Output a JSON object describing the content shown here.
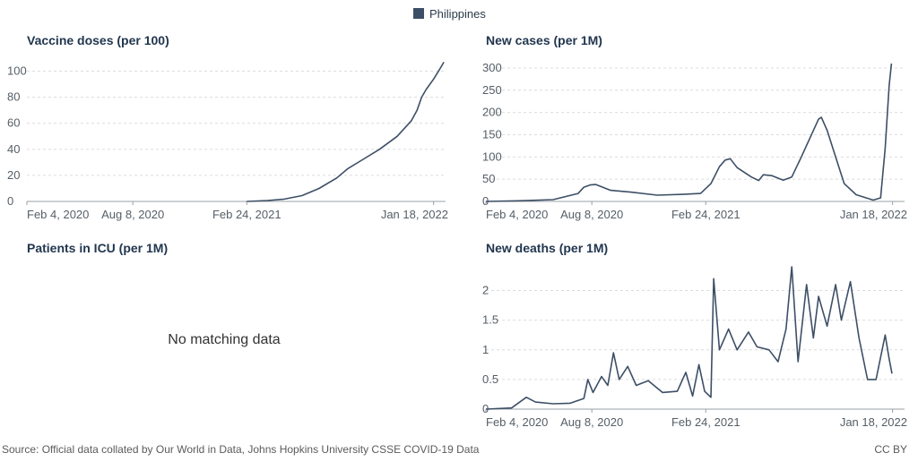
{
  "legend": {
    "label": "Philippines",
    "color": "#3d4f66"
  },
  "chart_data": [
    {
      "type": "line",
      "title": "Vaccine doses (per 100)",
      "series": [
        {
          "name": "Philippines",
          "color": "#3d4f66"
        }
      ],
      "ylim": [
        0,
        110
      ],
      "yticks": [
        "0",
        "20",
        "40",
        "60",
        "80",
        "100"
      ],
      "xticks": [
        "Feb 4, 2020",
        "Aug 8, 2020",
        "Feb 24, 2021",
        "Jan 18, 2022"
      ],
      "grid": true,
      "points": [
        [
          "2021-02-24",
          0
        ],
        [
          "2021-04-01",
          0.7
        ],
        [
          "2021-05-01",
          1.8
        ],
        [
          "2021-06-01",
          4.5
        ],
        [
          "2021-07-01",
          10
        ],
        [
          "2021-08-01",
          18
        ],
        [
          "2021-08-20",
          25
        ],
        [
          "2021-09-15",
          32
        ],
        [
          "2021-10-15",
          40
        ],
        [
          "2021-11-15",
          50
        ],
        [
          "2021-12-10",
          62
        ],
        [
          "2021-12-20",
          70
        ],
        [
          "2021-12-28",
          80
        ],
        [
          "2022-01-05",
          86
        ],
        [
          "2022-01-18",
          94
        ],
        [
          "2022-01-28",
          101
        ],
        [
          "2022-02-05",
          107
        ]
      ]
    },
    {
      "type": "line",
      "title": "New cases (per 1M)",
      "series": [
        {
          "name": "Philippines",
          "color": "#3d4f66"
        }
      ],
      "ylim": [
        0,
        320
      ],
      "yticks": [
        "0",
        "50",
        "100",
        "150",
        "200",
        "250",
        "300"
      ],
      "xticks": [
        "Feb 4, 2020",
        "Aug 8, 2020",
        "Feb 24, 2021",
        "Jan 18, 2022"
      ],
      "grid": true,
      "points": [
        [
          "2020-02-04",
          0
        ],
        [
          "2020-04-01",
          1.5
        ],
        [
          "2020-06-01",
          4
        ],
        [
          "2020-07-15",
          18
        ],
        [
          "2020-07-25",
          32
        ],
        [
          "2020-08-05",
          37
        ],
        [
          "2020-08-15",
          38
        ],
        [
          "2020-08-25",
          33
        ],
        [
          "2020-09-10",
          25
        ],
        [
          "2020-10-15",
          21
        ],
        [
          "2020-12-01",
          14
        ],
        [
          "2021-01-15",
          16
        ],
        [
          "2021-02-15",
          18
        ],
        [
          "2021-03-05",
          40
        ],
        [
          "2021-03-20",
          78
        ],
        [
          "2021-03-30",
          93
        ],
        [
          "2021-04-08",
          96
        ],
        [
          "2021-04-20",
          76
        ],
        [
          "2021-05-15",
          55
        ],
        [
          "2021-05-28",
          47
        ],
        [
          "2021-06-05",
          60
        ],
        [
          "2021-06-20",
          58
        ],
        [
          "2021-07-10",
          48
        ],
        [
          "2021-07-25",
          55
        ],
        [
          "2021-08-10",
          98
        ],
        [
          "2021-08-25",
          140
        ],
        [
          "2021-09-10",
          185
        ],
        [
          "2021-09-15",
          189
        ],
        [
          "2021-09-25",
          160
        ],
        [
          "2021-10-10",
          100
        ],
        [
          "2021-10-25",
          40
        ],
        [
          "2021-11-15",
          15
        ],
        [
          "2021-12-15",
          3
        ],
        [
          "2021-12-28",
          8
        ],
        [
          "2022-01-05",
          120
        ],
        [
          "2022-01-12",
          260
        ],
        [
          "2022-01-16",
          310
        ]
      ]
    },
    {
      "type": "line",
      "title": "Patients in ICU (per 1M)",
      "series": [],
      "empty_message": "No matching data"
    },
    {
      "type": "line",
      "title": "New deaths (per 1M)",
      "series": [
        {
          "name": "Philippines",
          "color": "#3d4f66"
        }
      ],
      "ylim": [
        0,
        2.4
      ],
      "yticks": [
        "0",
        "0.5",
        "1",
        "1.5",
        "2"
      ],
      "xticks": [
        "Feb 4, 2020",
        "Aug 8, 2020",
        "Feb 24, 2021",
        "Jan 18, 2022"
      ],
      "grid": true,
      "points": [
        [
          "2020-02-04",
          0
        ],
        [
          "2020-03-20",
          0.02
        ],
        [
          "2020-04-15",
          0.2
        ],
        [
          "2020-05-01",
          0.12
        ],
        [
          "2020-06-01",
          0.09
        ],
        [
          "2020-07-01",
          0.1
        ],
        [
          "2020-07-25",
          0.18
        ],
        [
          "2020-08-01",
          0.5
        ],
        [
          "2020-08-10",
          0.28
        ],
        [
          "2020-08-25",
          0.55
        ],
        [
          "2020-09-05",
          0.4
        ],
        [
          "2020-09-15",
          0.95
        ],
        [
          "2020-09-25",
          0.5
        ],
        [
          "2020-10-10",
          0.72
        ],
        [
          "2020-10-25",
          0.4
        ],
        [
          "2020-11-15",
          0.48
        ],
        [
          "2020-12-10",
          0.28
        ],
        [
          "2021-01-05",
          0.3
        ],
        [
          "2021-01-20",
          0.62
        ],
        [
          "2021-02-01",
          0.22
        ],
        [
          "2021-02-12",
          0.75
        ],
        [
          "2021-02-22",
          0.3
        ],
        [
          "2021-03-05",
          0.2
        ],
        [
          "2021-03-10",
          2.2
        ],
        [
          "2021-03-20",
          1.0
        ],
        [
          "2021-04-05",
          1.35
        ],
        [
          "2021-04-20",
          1.0
        ],
        [
          "2021-05-10",
          1.3
        ],
        [
          "2021-05-25",
          1.05
        ],
        [
          "2021-06-15",
          1.0
        ],
        [
          "2021-07-01",
          0.8
        ],
        [
          "2021-07-15",
          1.35
        ],
        [
          "2021-07-25",
          2.4
        ],
        [
          "2021-08-05",
          0.8
        ],
        [
          "2021-08-20",
          2.1
        ],
        [
          "2021-09-01",
          1.2
        ],
        [
          "2021-09-10",
          1.9
        ],
        [
          "2021-09-25",
          1.4
        ],
        [
          "2021-10-10",
          2.1
        ],
        [
          "2021-10-20",
          1.5
        ],
        [
          "2021-11-05",
          2.15
        ],
        [
          "2021-11-20",
          1.2
        ],
        [
          "2021-12-05",
          0.5
        ],
        [
          "2021-12-20",
          0.5
        ],
        [
          "2022-01-05",
          1.25
        ],
        [
          "2022-01-12",
          0.85
        ],
        [
          "2022-01-17",
          0.6
        ]
      ]
    }
  ],
  "footer": {
    "source": "Source: Official data collated by Our World in Data, Johns Hopkins University CSSE COVID-19 Data",
    "license": "CC BY"
  }
}
